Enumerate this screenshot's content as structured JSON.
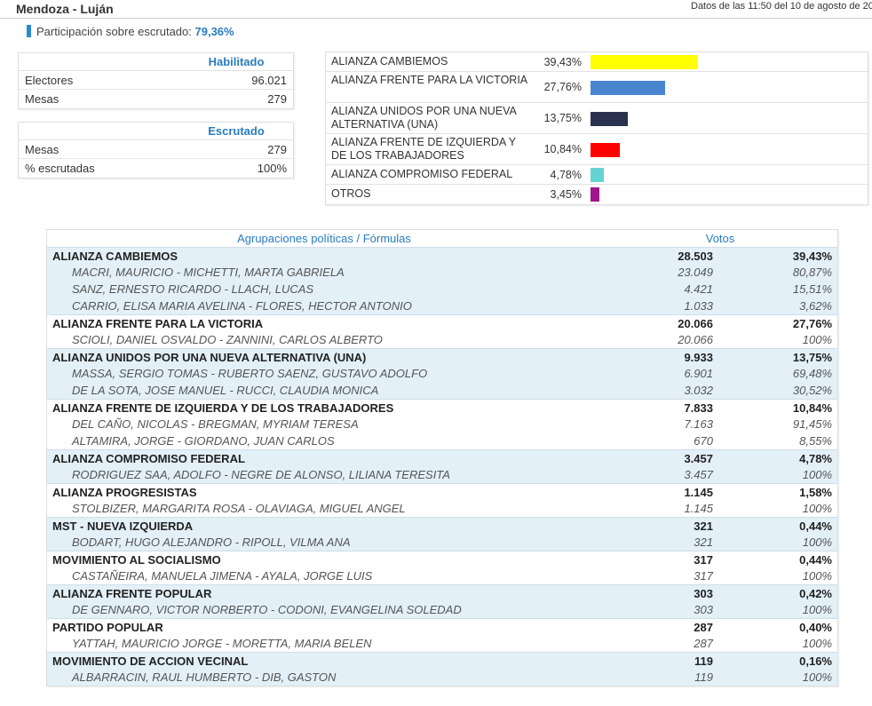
{
  "header": {
    "title": "Mendoza - Luján",
    "datetime": "Datos de las 11:50 del 10 de agosto de 20"
  },
  "participation": {
    "label": "Participación sobre escrutado:",
    "value": "79,36%"
  },
  "habilitado": {
    "title": "Habilitado",
    "rows": [
      {
        "label": "Electores",
        "value": "96.021"
      },
      {
        "label": "Mesas",
        "value": "279"
      }
    ]
  },
  "escrutado": {
    "title": "Escrutado",
    "rows": [
      {
        "label": "Mesas",
        "value": "279"
      },
      {
        "label": "% escrutadas",
        "value": "100%"
      }
    ]
  },
  "summary": [
    {
      "name": "ALIANZA CAMBIEMOS",
      "pct": "39,43%",
      "value": 39.43,
      "color": "#ffff00"
    },
    {
      "name": "ALIANZA FRENTE PARA LA VICTORIA",
      "pct": "27,76%",
      "value": 27.76,
      "color": "#4a86d0"
    },
    {
      "name": "ALIANZA UNIDOS POR UNA NUEVA ALTERNATIVA (UNA)",
      "pct": "13,75%",
      "value": 13.75,
      "color": "#2b3250"
    },
    {
      "name": "ALIANZA FRENTE DE IZQUIERDA Y DE LOS TRABAJADORES",
      "pct": "10,84%",
      "value": 10.84,
      "color": "#ff0000"
    },
    {
      "name": "ALIANZA COMPROMISO FEDERAL",
      "pct": "4,78%",
      "value": 4.78,
      "color": "#66d3d3"
    },
    {
      "name": "OTROS",
      "pct": "3,45%",
      "value": 3.45,
      "color": "#a0148c"
    }
  ],
  "results": {
    "col_party": "Agrupaciones políticas / Fórmulas",
    "col_votes": "Votos",
    "parties": [
      {
        "name": "ALIANZA CAMBIEMOS",
        "votes": "28.503",
        "pct": "39,43%",
        "candidates": [
          {
            "name": "MACRI, MAURICIO - MICHETTI, MARTA GABRIELA",
            "votes": "23.049",
            "pct": "80,87%"
          },
          {
            "name": "SANZ, ERNESTO RICARDO - LLACH, LUCAS",
            "votes": "4.421",
            "pct": "15,51%"
          },
          {
            "name": "CARRIO, ELISA MARIA AVELINA - FLORES, HECTOR ANTONIO",
            "votes": "1.033",
            "pct": "3,62%"
          }
        ]
      },
      {
        "name": "ALIANZA FRENTE PARA LA VICTORIA",
        "votes": "20.066",
        "pct": "27,76%",
        "candidates": [
          {
            "name": "SCIOLI, DANIEL OSVALDO - ZANNINI, CARLOS ALBERTO",
            "votes": "20.066",
            "pct": "100%"
          }
        ]
      },
      {
        "name": "ALIANZA UNIDOS POR UNA NUEVA ALTERNATIVA (UNA)",
        "votes": "9.933",
        "pct": "13,75%",
        "candidates": [
          {
            "name": "MASSA, SERGIO TOMAS - RUBERTO SAENZ, GUSTAVO ADOLFO",
            "votes": "6.901",
            "pct": "69,48%"
          },
          {
            "name": "DE LA SOTA, JOSE MANUEL - RUCCI, CLAUDIA MONICA",
            "votes": "3.032",
            "pct": "30,52%"
          }
        ]
      },
      {
        "name": "ALIANZA FRENTE DE IZQUIERDA Y DE LOS TRABAJADORES",
        "votes": "7.833",
        "pct": "10,84%",
        "candidates": [
          {
            "name": "DEL CAÑO, NICOLAS - BREGMAN, MYRIAM TERESA",
            "votes": "7.163",
            "pct": "91,45%"
          },
          {
            "name": "ALTAMIRA, JORGE - GIORDANO, JUAN CARLOS",
            "votes": "670",
            "pct": "8,55%"
          }
        ]
      },
      {
        "name": "ALIANZA COMPROMISO FEDERAL",
        "votes": "3.457",
        "pct": "4,78%",
        "candidates": [
          {
            "name": "RODRIGUEZ SAA, ADOLFO - NEGRE DE ALONSO, LILIANA TERESITA",
            "votes": "3.457",
            "pct": "100%"
          }
        ]
      },
      {
        "name": "ALIANZA PROGRESISTAS",
        "votes": "1.145",
        "pct": "1,58%",
        "candidates": [
          {
            "name": "STOLBIZER, MARGARITA ROSA - OLAVIAGA, MIGUEL ANGEL",
            "votes": "1.145",
            "pct": "100%"
          }
        ]
      },
      {
        "name": "MST - NUEVA IZQUIERDA",
        "votes": "321",
        "pct": "0,44%",
        "candidates": [
          {
            "name": "BODART, HUGO ALEJANDRO - RIPOLL, VILMA ANA",
            "votes": "321",
            "pct": "100%"
          }
        ]
      },
      {
        "name": "MOVIMIENTO AL SOCIALISMO",
        "votes": "317",
        "pct": "0,44%",
        "candidates": [
          {
            "name": "CASTAÑEIRA, MANUELA JIMENA - AYALA, JORGE LUIS",
            "votes": "317",
            "pct": "100%"
          }
        ]
      },
      {
        "name": "ALIANZA FRENTE POPULAR",
        "votes": "303",
        "pct": "0,42%",
        "candidates": [
          {
            "name": "DE GENNARO, VICTOR NORBERTO - CODONI, EVANGELINA SOLEDAD",
            "votes": "303",
            "pct": "100%"
          }
        ]
      },
      {
        "name": "PARTIDO POPULAR",
        "votes": "287",
        "pct": "0,40%",
        "candidates": [
          {
            "name": "YATTAH, MAURICIO JORGE - MORETTA, MARIA BELEN",
            "votes": "287",
            "pct": "100%"
          }
        ]
      },
      {
        "name": "MOVIMIENTO DE ACCION VECINAL",
        "votes": "119",
        "pct": "0,16%",
        "candidates": [
          {
            "name": "ALBARRACIN, RAUL HUMBERTO - DIB, GASTON",
            "votes": "119",
            "pct": "100%"
          }
        ]
      }
    ]
  }
}
